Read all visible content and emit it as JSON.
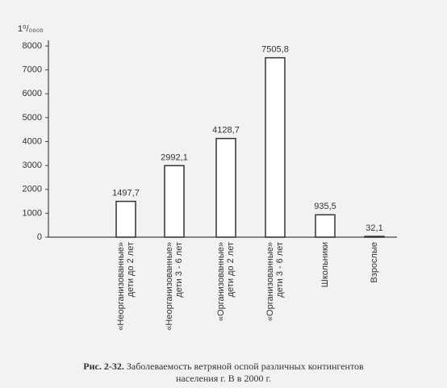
{
  "chart_data": {
    "type": "bar",
    "y_label": "1⁰/₀₀₀₀",
    "categories": [
      [
        "«Неорганизованные»",
        "дети до 2 лет"
      ],
      [
        "«Неорганизованные»",
        "дети 3 - 6 лет"
      ],
      [
        "«Организованные»",
        "дети до 2 лет"
      ],
      [
        "«Организованные»",
        "дети 3 - 6 лет"
      ],
      [
        "Школьники"
      ],
      [
        "Взрослые"
      ]
    ],
    "values": [
      1497.7,
      2992.1,
      4128.7,
      7505.8,
      935.5,
      32.1
    ],
    "value_labels": [
      "1497,7",
      "2992,1",
      "4128,7",
      "7505,8",
      "935,5",
      "32,1"
    ],
    "color": "#ffffff",
    "ylim": [
      0,
      8000
    ],
    "yticks": [
      0,
      1000,
      2000,
      3000,
      4000,
      5000,
      6000,
      7000,
      8000
    ],
    "grid": false,
    "caption_label": "Рис. 2-32.",
    "caption_lines": [
      "Заболеваемость ветряной оспой различных контингентов",
      "населения г. В в 2000 г."
    ]
  }
}
